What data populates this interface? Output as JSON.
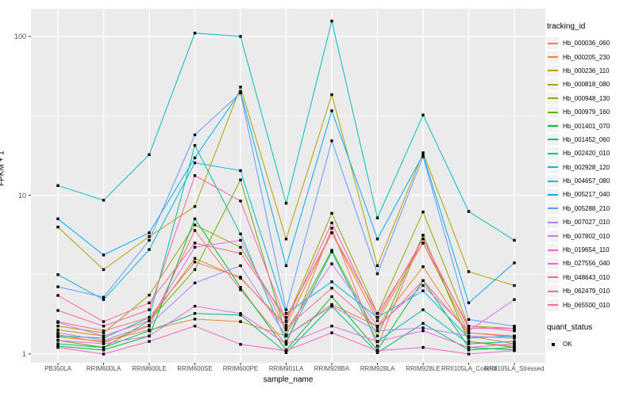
{
  "figure": {
    "xlabel": "sample_name",
    "ylabel": "FPKM + 1"
  },
  "legend": {
    "tracking_title": "tracking_id",
    "quant_title": "quant_status",
    "quant_ok_label": "OK"
  },
  "colors": {
    "panel_bg": "#EBEBEB",
    "grid": "#FFFFFF",
    "tick_text": "#4D4D4D",
    "marker": "#000000",
    "legend_key_bg": "#F2F2F2"
  },
  "chart_data": {
    "type": "line",
    "title": "",
    "xlabel": "sample_name",
    "ylabel": "FPKM + 1",
    "y_scale": "log10",
    "y_ticks": [
      1,
      10,
      100
    ],
    "y_minor_ticks": [
      3.162,
      31.62
    ],
    "ylim": [
      1,
      150
    ],
    "grid": true,
    "legend_position": "right",
    "point_marker": "black-square",
    "categories": [
      "PB350LA",
      "RRIM600LA",
      "RRIM600LE",
      "RRIM600SE",
      "RRIM600PE",
      "RRIM901LA",
      "RRIM928BA",
      "RRIM928LA",
      "RRIM928LE",
      "RRII105LA_Control",
      "RRII105LA_Stressed"
    ],
    "series": [
      {
        "name": "Hb_000036_060",
        "color": "#F8766D",
        "values": [
          1.32,
          1.18,
          1.5,
          6.0,
          2.54,
          1.15,
          6.2,
          1.12,
          5.6,
          1.2,
          1.12
        ]
      },
      {
        "name": "Hb_000205_230",
        "color": "#E98A2C",
        "values": [
          1.28,
          1.2,
          1.42,
          1.66,
          1.6,
          1.3,
          2.05,
          1.5,
          3.55,
          1.3,
          1.16
        ]
      },
      {
        "name": "Hb_000236_110",
        "color": "#D39200",
        "values": [
          1.42,
          1.3,
          1.62,
          4.0,
          3.0,
          1.52,
          5.8,
          1.62,
          5.0,
          1.36,
          1.28
        ]
      },
      {
        "name": "Hb_000818_080",
        "color": "#B79F00",
        "values": [
          6.3,
          3.4,
          5.5,
          8.5,
          48,
          5.3,
          43,
          3.6,
          18.5,
          3.3,
          2.7
        ]
      },
      {
        "name": "Hb_000948_130",
        "color": "#95A900",
        "values": [
          1.5,
          1.36,
          2.35,
          6.5,
          4.7,
          1.62,
          7.7,
          1.8,
          7.85,
          1.5,
          1.45
        ]
      },
      {
        "name": "Hb_000979_160",
        "color": "#64B200",
        "values": [
          1.22,
          1.1,
          1.62,
          3.4,
          12.5,
          1.32,
          4.5,
          1.3,
          5.6,
          1.2,
          1.1
        ]
      },
      {
        "name": "Hb_001401_070",
        "color": "#00BA38",
        "values": [
          1.12,
          1.06,
          1.3,
          7.1,
          2.63,
          1.06,
          2.3,
          1.06,
          2.9,
          1.1,
          1.06
        ]
      },
      {
        "name": "Hb_001452_060",
        "color": "#00BF74",
        "values": [
          1.16,
          1.1,
          1.4,
          1.8,
          1.76,
          1.02,
          2.0,
          1.02,
          1.56,
          1.06,
          1.1
        ]
      },
      {
        "name": "Hb_002420_010",
        "color": "#00C19F",
        "values": [
          1.3,
          1.26,
          1.7,
          20.6,
          5.7,
          1.2,
          4.4,
          1.2,
          1.9,
          1.16,
          1.2
        ]
      },
      {
        "name": "Hb_002928_120",
        "color": "#00BFC4",
        "values": [
          11.5,
          9.3,
          18,
          105,
          100,
          8.9,
          125,
          7.2,
          32,
          7.9,
          5.2
        ]
      },
      {
        "name": "Hb_004657_080",
        "color": "#00B9E3",
        "values": [
          3.16,
          2.2,
          4.55,
          16,
          14.3,
          1.8,
          2.85,
          1.7,
          2.5,
          1.26,
          1.3
        ]
      },
      {
        "name": "Hb_005217_040",
        "color": "#00ADFA",
        "values": [
          7.1,
          4.2,
          5.8,
          17.2,
          45,
          3.6,
          34,
          5.3,
          18,
          2.1,
          3.75
        ]
      },
      {
        "name": "Hb_005288_210",
        "color": "#619CFF",
        "values": [
          2.65,
          2.28,
          5.2,
          24,
          44,
          1.9,
          22,
          3.2,
          17.5,
          1.65,
          1.5
        ]
      },
      {
        "name": "Hb_007027_010",
        "color": "#AE87FF",
        "values": [
          1.36,
          1.22,
          1.52,
          2.8,
          3.6,
          1.3,
          2.0,
          1.4,
          1.46,
          1.3,
          1.26
        ]
      },
      {
        "name": "Hb_007802_010",
        "color": "#DB72FB",
        "values": [
          1.58,
          1.3,
          1.62,
          4.7,
          5.2,
          1.42,
          3.7,
          1.5,
          2.7,
          1.4,
          2.2
        ]
      },
      {
        "name": "Hb_019654_110",
        "color": "#F564E3",
        "values": [
          1.22,
          1.16,
          1.3,
          2.0,
          1.8,
          1.16,
          1.5,
          1.2,
          1.4,
          1.1,
          1.16
        ]
      },
      {
        "name": "Hb_027556_040",
        "color": "#FF61C8",
        "values": [
          1.1,
          1.0,
          1.2,
          1.5,
          1.15,
          1.05,
          1.36,
          1.05,
          1.1,
          1.0,
          1.05
        ]
      },
      {
        "name": "Hb_048643_010",
        "color": "#FF62B0",
        "values": [
          1.88,
          1.5,
          1.9,
          13.3,
          9.2,
          1.6,
          6.7,
          1.7,
          5.3,
          1.45,
          1.45
        ]
      },
      {
        "name": "Hb_062479_010",
        "color": "#FF699C",
        "values": [
          2.34,
          1.6,
          2.1,
          5.0,
          4.3,
          1.7,
          5.8,
          1.8,
          5.0,
          1.5,
          1.4
        ]
      },
      {
        "name": "Hb_065500_010",
        "color": "#FE6E88",
        "values": [
          1.6,
          1.4,
          1.7,
          3.8,
          3.05,
          1.46,
          2.6,
          1.46,
          2.9,
          1.36,
          1.3
        ]
      }
    ]
  }
}
